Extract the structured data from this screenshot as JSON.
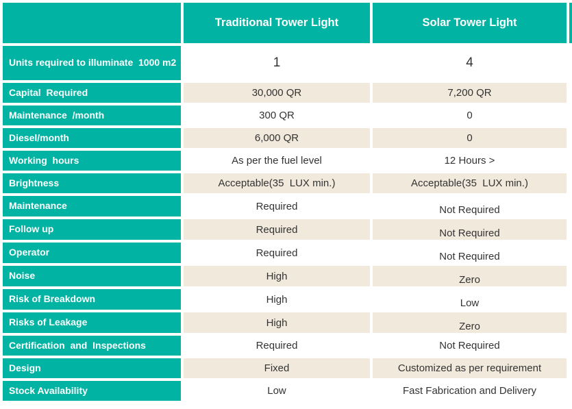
{
  "table": {
    "header": {
      "corner": "",
      "traditional": "Traditional Tower Light",
      "solar": "Solar Tower Light"
    },
    "rows": [
      {
        "label": "Units required to illuminate  1000 m2",
        "traditional": "1",
        "solar": "4"
      },
      {
        "label": "Capital  Required",
        "traditional": "30,000 QR",
        "solar": "7,200 QR"
      },
      {
        "label": "Maintenance  /month",
        "traditional": "300 QR",
        "solar": "0"
      },
      {
        "label": "Diesel/month",
        "traditional": "6,000 QR",
        "solar": "0"
      },
      {
        "label": "Working  hours",
        "traditional": "As per the fuel level",
        "solar": "12 Hours >"
      },
      {
        "label": "Brightness",
        "traditional": "Acceptable(35  LUX min.)",
        "solar": "Acceptable(35  LUX min.)"
      },
      {
        "label": "Maintenance",
        "traditional": "Required",
        "solar": "Not Required"
      },
      {
        "label": "Follow up",
        "traditional": "Required",
        "solar": "Not Required"
      },
      {
        "label": "Operator",
        "traditional": "Required",
        "solar": "Not Required"
      },
      {
        "label": "Noise",
        "traditional": "High",
        "solar": "Zero"
      },
      {
        "label": "Risk of Breakdown",
        "traditional": "High",
        "solar": "Low"
      },
      {
        "label": "Risks of Leakage",
        "traditional": "High",
        "solar": "Zero"
      },
      {
        "label": "Certification  and  Inspections",
        "traditional": "Required",
        "solar": "Not Required"
      },
      {
        "label": "Design",
        "traditional": "Fixed",
        "solar": "Customized as per requirement"
      },
      {
        "label": "Stock Availability",
        "traditional": "Low",
        "solar": "Fast Fabrication and Delivery"
      }
    ]
  },
  "colors": {
    "teal": "#00b3a3",
    "beige": "#f0e9dc",
    "value_text": "#333333",
    "header_text": "#ffffff",
    "background": "#ffffff"
  }
}
